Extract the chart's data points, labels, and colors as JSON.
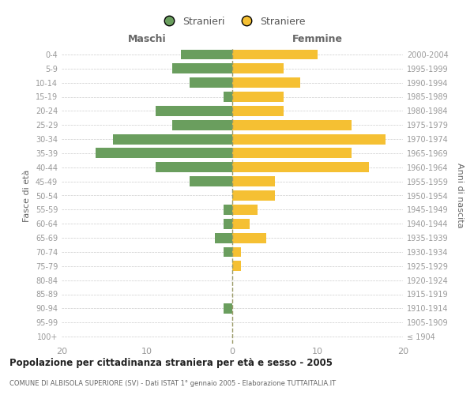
{
  "age_groups": [
    "100+",
    "95-99",
    "90-94",
    "85-89",
    "80-84",
    "75-79",
    "70-74",
    "65-69",
    "60-64",
    "55-59",
    "50-54",
    "45-49",
    "40-44",
    "35-39",
    "30-34",
    "25-29",
    "20-24",
    "15-19",
    "10-14",
    "5-9",
    "0-4"
  ],
  "birth_years": [
    "≤ 1904",
    "1905-1909",
    "1910-1914",
    "1915-1919",
    "1920-1924",
    "1925-1929",
    "1930-1934",
    "1935-1939",
    "1940-1944",
    "1945-1949",
    "1950-1954",
    "1955-1959",
    "1960-1964",
    "1965-1969",
    "1970-1974",
    "1975-1979",
    "1980-1984",
    "1985-1989",
    "1990-1994",
    "1995-1999",
    "2000-2004"
  ],
  "maschi": [
    0,
    0,
    1,
    0,
    0,
    0,
    1,
    2,
    1,
    1,
    0,
    5,
    9,
    16,
    14,
    7,
    9,
    1,
    5,
    7,
    6
  ],
  "femmine": [
    0,
    0,
    0,
    0,
    0,
    1,
    1,
    4,
    2,
    3,
    5,
    5,
    16,
    14,
    18,
    14,
    6,
    6,
    8,
    6,
    10
  ],
  "maschi_color": "#6a9e5e",
  "femmine_color": "#f5c033",
  "background_color": "#ffffff",
  "grid_color": "#cccccc",
  "dashed_line_color": "#999966",
  "title": "Popolazione per cittadinanza straniera per età e sesso - 2005",
  "subtitle": "COMUNE DI ALBISOLA SUPERIORE (SV) - Dati ISTAT 1° gennaio 2005 - Elaborazione TUTTAITALIA.IT",
  "xlabel_left": "Maschi",
  "xlabel_right": "Femmine",
  "ylabel_left": "Fasce di età",
  "ylabel_right": "Anni di nascita",
  "legend_maschi": "Stranieri",
  "legend_femmine": "Straniere",
  "xlim": 20
}
